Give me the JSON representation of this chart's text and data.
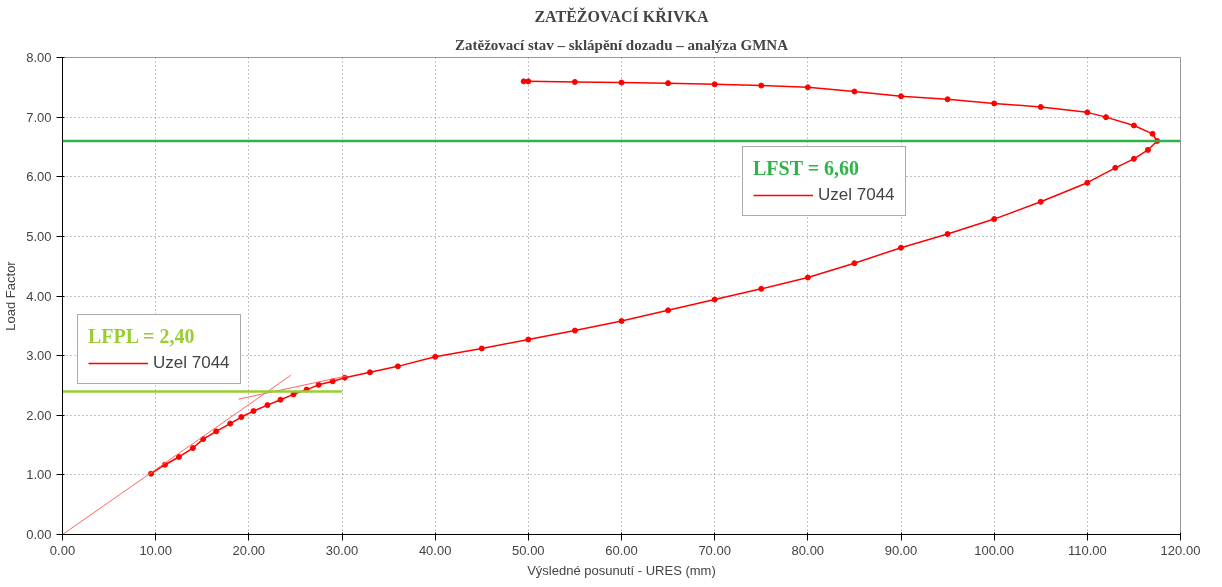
{
  "chart_data": {
    "type": "line",
    "title": "ZATĚŽOVACÍ KŘIVKA",
    "subtitle": "Zatěžovací stav – sklápění dozadu – analýza GMNA",
    "xlabel": "Výsledné posunutí - URES (mm)",
    "ylabel": "Load Factor",
    "xlim": [
      0,
      120
    ],
    "ylim": [
      0,
      8
    ],
    "xticks": [
      {
        "value": 0,
        "label": "0.00"
      },
      {
        "value": 10,
        "label": "10.00"
      },
      {
        "value": 20,
        "label": "20.00"
      },
      {
        "value": 30,
        "label": "30.00"
      },
      {
        "value": 40,
        "label": "40.00"
      },
      {
        "value": 50,
        "label": "50.00"
      },
      {
        "value": 60,
        "label": "60.00"
      },
      {
        "value": 70,
        "label": "70.00"
      },
      {
        "value": 80,
        "label": "80.00"
      },
      {
        "value": 90,
        "label": "90.00"
      },
      {
        "value": 100,
        "label": "100.00"
      },
      {
        "value": 110,
        "label": "110.00"
      },
      {
        "value": 120,
        "label": "120.00"
      }
    ],
    "yticks": [
      {
        "value": 0,
        "label": "0.00"
      },
      {
        "value": 1,
        "label": "1.00"
      },
      {
        "value": 2,
        "label": "2.00"
      },
      {
        "value": 3,
        "label": "3.00"
      },
      {
        "value": 4,
        "label": "4.00"
      },
      {
        "value": 5,
        "label": "5.00"
      },
      {
        "value": 6,
        "label": "6.00"
      },
      {
        "value": 7,
        "label": "7.00"
      },
      {
        "value": 8,
        "label": "8.00"
      }
    ],
    "grid": true,
    "legend": "top right",
    "series": [
      {
        "name": "Uzel 7044",
        "color": "#ff0000",
        "marker": "circle",
        "x": [
          9.5,
          11,
          12.5,
          14,
          15.1,
          16.5,
          18,
          19.2,
          20.5,
          22,
          23.4,
          24.8,
          26.2,
          27.5,
          29,
          30.3,
          33,
          36,
          40,
          45,
          50,
          55,
          60,
          65,
          70,
          75,
          80,
          85,
          90,
          95,
          100,
          105,
          110,
          113,
          115,
          116.5,
          117.5,
          117,
          115,
          112,
          110,
          105,
          100,
          95,
          90,
          85,
          80,
          75,
          70,
          65,
          60,
          55,
          50,
          49.5
        ],
        "values": [
          1.02,
          1.17,
          1.3,
          1.45,
          1.6,
          1.73,
          1.86,
          1.97,
          2.07,
          2.17,
          2.26,
          2.35,
          2.43,
          2.51,
          2.57,
          2.63,
          2.72,
          2.82,
          2.98,
          3.12,
          3.27,
          3.42,
          3.58,
          3.76,
          3.94,
          4.12,
          4.31,
          4.55,
          4.81,
          5.04,
          5.29,
          5.58,
          5.9,
          6.15,
          6.3,
          6.45,
          6.6,
          6.72,
          6.86,
          7.0,
          7.08,
          7.17,
          7.23,
          7.3,
          7.35,
          7.43,
          7.5,
          7.53,
          7.55,
          7.57,
          7.58,
          7.59,
          7.6,
          7.6
        ]
      },
      {
        "color": "#ff6666",
        "marker": "none",
        "x": [
          0,
          24.5
        ],
        "values": [
          0,
          2.67
        ]
      },
      {
        "color": "#ff6666",
        "marker": "none",
        "x": [
          18.9,
          30.5
        ],
        "values": [
          2.27,
          2.66
        ]
      },
      {
        "name": "LFPL = 2,40",
        "color": "#9acd32",
        "marker": "none",
        "x": [
          0,
          30
        ],
        "values": [
          2.4,
          2.4
        ]
      }
    ],
    "ref_lines": [
      {
        "axis": "y",
        "value": 6.6,
        "label": "LFST = 6,60",
        "color": "#2db34a"
      }
    ]
  }
}
